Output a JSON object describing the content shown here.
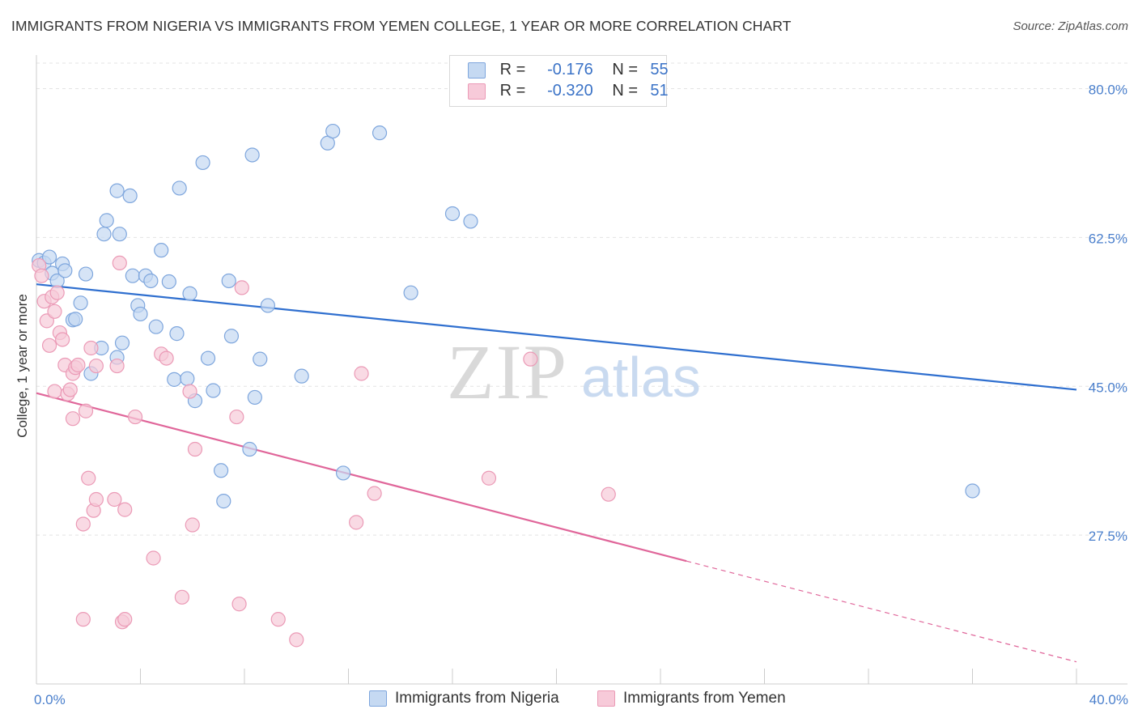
{
  "title": "IMMIGRANTS FROM NIGERIA VS IMMIGRANTS FROM YEMEN COLLEGE, 1 YEAR OR MORE CORRELATION CHART",
  "source": "Source: ZipAtlas.com",
  "watermark": {
    "zip": "ZIP",
    "atlas": "atlas"
  },
  "legend": {
    "rows": [
      {
        "r_label": "R =",
        "r_value": "-0.176",
        "n_label": "N =",
        "n_value": "55"
      },
      {
        "r_label": "R =",
        "r_value": "-0.320",
        "n_label": "N =",
        "n_value": "51"
      }
    ]
  },
  "colors": {
    "nigeria_fill": "#c5d9f2",
    "nigeria_stroke": "#7ea6dd",
    "nigeria_line": "#2f6fcf",
    "yemen_fill": "#f7cad9",
    "yemen_stroke": "#eb9ab6",
    "yemen_line": "#e0669a",
    "grid": "#e3e3e3",
    "tick_text": "#4a7fcc"
  },
  "chart_data": {
    "type": "scatter",
    "title": "IMMIGRANTS FROM NIGERIA VS IMMIGRANTS FROM YEMEN COLLEGE, 1 YEAR OR MORE CORRELATION CHART",
    "xlabel": "",
    "ylabel": "College, 1 year or more",
    "xlim": [
      0,
      40
    ],
    "ylim": [
      10,
      83
    ],
    "x_tick_labels": [
      "0.0%",
      "40.0%"
    ],
    "y_ticks": [
      27.5,
      45.0,
      62.5,
      80.0
    ],
    "y_tick_labels": [
      "27.5%",
      "45.0%",
      "62.5%",
      "80.0%"
    ],
    "grid": true,
    "series": [
      {
        "name": "Immigrants from Nigeria",
        "key": "nigeria",
        "r": -0.176,
        "n": 55,
        "trend": {
          "x0": 0,
          "y0": 57.0,
          "x1": 40,
          "y1": 44.6,
          "solid_until": 40
        },
        "points": [
          [
            0.1,
            59.8
          ],
          [
            0.3,
            59.5
          ],
          [
            0.5,
            60.2
          ],
          [
            0.6,
            58.3
          ],
          [
            0.8,
            57.4
          ],
          [
            1.0,
            59.4
          ],
          [
            1.1,
            58.6
          ],
          [
            1.4,
            52.8
          ],
          [
            1.5,
            52.9
          ],
          [
            1.7,
            54.8
          ],
          [
            1.9,
            58.2
          ],
          [
            2.1,
            46.5
          ],
          [
            2.5,
            49.5
          ],
          [
            2.6,
            62.9
          ],
          [
            2.7,
            64.5
          ],
          [
            3.1,
            68.0
          ],
          [
            3.1,
            48.4
          ],
          [
            3.2,
            62.9
          ],
          [
            3.3,
            50.1
          ],
          [
            3.6,
            67.4
          ],
          [
            3.7,
            58.0
          ],
          [
            3.9,
            54.5
          ],
          [
            4.0,
            53.5
          ],
          [
            4.2,
            58.0
          ],
          [
            4.4,
            57.4
          ],
          [
            4.6,
            52.0
          ],
          [
            4.8,
            61.0
          ],
          [
            5.1,
            57.3
          ],
          [
            5.3,
            45.8
          ],
          [
            5.4,
            51.2
          ],
          [
            5.5,
            68.3
          ],
          [
            5.8,
            45.9
          ],
          [
            5.9,
            55.9
          ],
          [
            6.1,
            43.3
          ],
          [
            6.4,
            71.3
          ],
          [
            6.6,
            48.3
          ],
          [
            6.8,
            44.5
          ],
          [
            7.1,
            35.1
          ],
          [
            7.2,
            31.5
          ],
          [
            7.4,
            57.4
          ],
          [
            7.5,
            50.9
          ],
          [
            8.2,
            37.6
          ],
          [
            8.3,
            72.2
          ],
          [
            8.4,
            43.7
          ],
          [
            8.6,
            48.2
          ],
          [
            8.9,
            54.5
          ],
          [
            10.2,
            46.2
          ],
          [
            11.2,
            73.6
          ],
          [
            11.4,
            75.0
          ],
          [
            11.8,
            34.8
          ],
          [
            13.2,
            74.8
          ],
          [
            14.4,
            56.0
          ],
          [
            16.0,
            65.3
          ],
          [
            16.7,
            64.4
          ],
          [
            36.0,
            32.7
          ]
        ]
      },
      {
        "name": "Immigrants from Yemen",
        "key": "yemen",
        "r": -0.32,
        "n": 51,
        "trend": {
          "x0": 0,
          "y0": 44.2,
          "x1": 40,
          "y1": 12.6,
          "solid_until": 25.0
        },
        "points": [
          [
            0.1,
            59.2
          ],
          [
            0.2,
            58.0
          ],
          [
            0.3,
            55.0
          ],
          [
            0.4,
            52.7
          ],
          [
            0.5,
            49.8
          ],
          [
            0.6,
            55.5
          ],
          [
            0.7,
            53.8
          ],
          [
            0.7,
            44.4
          ],
          [
            0.8,
            56.0
          ],
          [
            0.9,
            51.3
          ],
          [
            1.0,
            50.5
          ],
          [
            1.1,
            47.5
          ],
          [
            1.2,
            44.1
          ],
          [
            1.3,
            44.6
          ],
          [
            1.4,
            46.5
          ],
          [
            1.4,
            41.2
          ],
          [
            1.5,
            47.2
          ],
          [
            1.6,
            47.5
          ],
          [
            1.8,
            17.6
          ],
          [
            1.8,
            28.8
          ],
          [
            1.9,
            42.1
          ],
          [
            2.0,
            34.2
          ],
          [
            2.1,
            49.5
          ],
          [
            2.2,
            30.4
          ],
          [
            2.3,
            47.4
          ],
          [
            2.3,
            31.7
          ],
          [
            3.0,
            31.7
          ],
          [
            3.1,
            47.4
          ],
          [
            3.2,
            59.5
          ],
          [
            3.3,
            17.3
          ],
          [
            3.4,
            17.6
          ],
          [
            3.4,
            30.5
          ],
          [
            3.8,
            41.4
          ],
          [
            4.5,
            24.8
          ],
          [
            4.8,
            48.8
          ],
          [
            5.0,
            48.3
          ],
          [
            5.6,
            20.2
          ],
          [
            5.9,
            44.4
          ],
          [
            6.0,
            28.7
          ],
          [
            6.1,
            37.6
          ],
          [
            7.7,
            41.4
          ],
          [
            7.8,
            19.4
          ],
          [
            7.9,
            56.6
          ],
          [
            9.3,
            17.6
          ],
          [
            10.0,
            15.2
          ],
          [
            12.3,
            29.0
          ],
          [
            12.5,
            46.5
          ],
          [
            13.0,
            32.4
          ],
          [
            17.4,
            34.2
          ],
          [
            19.0,
            48.2
          ],
          [
            22.0,
            32.3
          ]
        ]
      }
    ]
  },
  "bottom_legend": [
    {
      "label": "Immigrants from Nigeria"
    },
    {
      "label": "Immigrants from Yemen"
    }
  ]
}
